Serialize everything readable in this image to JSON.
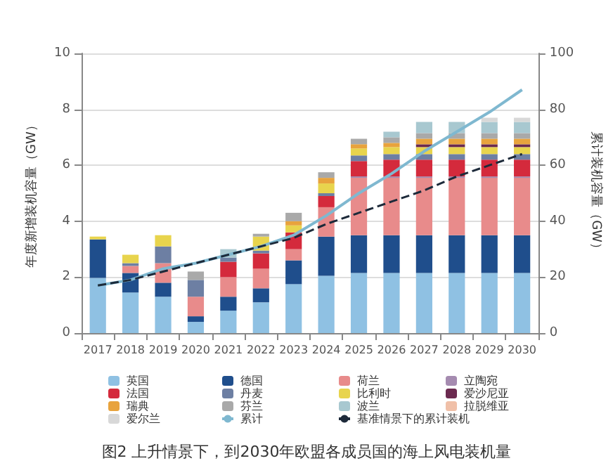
{
  "chart_data": {
    "type": "bar",
    "stacked": true,
    "title": "图2 上升情景下，到2030年欧盟各成员国的海上风电装机量",
    "ylabel": "年度新增装机容量（GW）",
    "y2label": "累计装机容量（GW）",
    "categories": [
      "2017",
      "2018",
      "2019",
      "2020",
      "2021",
      "2022",
      "2023",
      "2024",
      "2025",
      "2026",
      "2027",
      "2028",
      "2029",
      "2030"
    ],
    "ylim": [
      0,
      10
    ],
    "yticks": [
      0,
      2,
      4,
      6,
      8,
      10
    ],
    "y2lim": [
      0,
      100
    ],
    "y2ticks": [
      0,
      20,
      40,
      60,
      80,
      100
    ],
    "grid": "y",
    "legend": "bottom",
    "series": [
      {
        "name": "英国",
        "color": "#8fc1e3",
        "values": [
          1.97,
          1.45,
          1.3,
          0.4,
          0.8,
          1.1,
          1.75,
          2.05,
          2.15,
          2.15,
          2.15,
          2.15,
          2.15,
          2.15
        ]
      },
      {
        "name": "德国",
        "color": "#1f4e8c",
        "values": [
          1.38,
          0.7,
          0.5,
          0.2,
          0.5,
          0.5,
          0.85,
          1.4,
          1.35,
          1.35,
          1.35,
          1.35,
          1.35,
          1.35
        ]
      },
      {
        "name": "荷兰",
        "color": "#e88b8b",
        "values": [
          0,
          0.25,
          0.7,
          0.7,
          0.7,
          0.7,
          0.4,
          1.05,
          2.05,
          2.05,
          2.05,
          2.05,
          2.05,
          2.05
        ]
      },
      {
        "name": "立陶宛",
        "color": "#a58bb0",
        "values": [
          0,
          0,
          0,
          0,
          0,
          0,
          0,
          0,
          0.05,
          0.05,
          0.05,
          0.05,
          0.05,
          0.05
        ]
      },
      {
        "name": "法国",
        "color": "#d42a3c",
        "values": [
          0,
          0,
          0,
          0,
          0.55,
          0.55,
          0.6,
          0.4,
          0.55,
          0.6,
          0.6,
          0.6,
          0.6,
          0.6
        ]
      },
      {
        "name": "丹麦",
        "color": "#6d7fa3",
        "values": [
          0,
          0.1,
          0.6,
          0.6,
          0.15,
          0.1,
          0,
          0.1,
          0.2,
          0.2,
          0.2,
          0.2,
          0.2,
          0.2
        ]
      },
      {
        "name": "比利时",
        "color": "#e8d44d",
        "values": [
          0.1,
          0.3,
          0.4,
          0,
          0,
          0.5,
          0.25,
          0.35,
          0.25,
          0.25,
          0.25,
          0.25,
          0.25,
          0.25
        ]
      },
      {
        "name": "爱沙尼亚",
        "color": "#6b2a4f",
        "values": [
          0,
          0,
          0,
          0,
          0,
          0,
          0,
          0,
          0,
          0,
          0.1,
          0.1,
          0.1,
          0.1
        ]
      },
      {
        "name": "瑞典",
        "color": "#e8a33d",
        "values": [
          0,
          0,
          0,
          0,
          0,
          0,
          0.15,
          0.2,
          0.15,
          0.15,
          0.2,
          0.2,
          0.2,
          0.2
        ]
      },
      {
        "name": "芬兰",
        "color": "#a9a9a9",
        "values": [
          0,
          0,
          0,
          0.3,
          0,
          0.1,
          0.3,
          0.2,
          0.2,
          0.2,
          0.2,
          0.2,
          0.2,
          0.2
        ]
      },
      {
        "name": "波兰",
        "color": "#a8c8d0",
        "values": [
          0,
          0,
          0,
          0,
          0.3,
          0,
          0,
          0,
          0,
          0.2,
          0.4,
          0.4,
          0.4,
          0.4
        ]
      },
      {
        "name": "拉脱维亚",
        "color": "#f0c0a8",
        "values": [
          0,
          0,
          0,
          0,
          0,
          0,
          0,
          0,
          0,
          0,
          0,
          null,
          null,
          null
        ]
      },
      {
        "name": "爱尔兰",
        "color": "#d8d8d8",
        "values": [
          0,
          0,
          0,
          0,
          0,
          0,
          0,
          0,
          0,
          0,
          0,
          0,
          0.15,
          0.15
        ]
      },
      {
        "name": "累计",
        "type": "line",
        "axis": "y2",
        "color": "#7fb8d0",
        "line_style": "solid",
        "values": [
          17,
          19,
          23,
          25,
          28,
          31,
          35,
          42,
          50,
          57,
          65,
          72,
          79,
          87
        ]
      },
      {
        "name": "基准情景下的累计装机",
        "type": "line",
        "axis": "y2",
        "color": "#1d2a3a",
        "line_style": "dashed",
        "values": [
          17,
          19,
          22,
          25,
          28,
          31,
          34,
          39,
          43,
          47,
          51,
          56,
          60,
          64
        ]
      }
    ]
  }
}
